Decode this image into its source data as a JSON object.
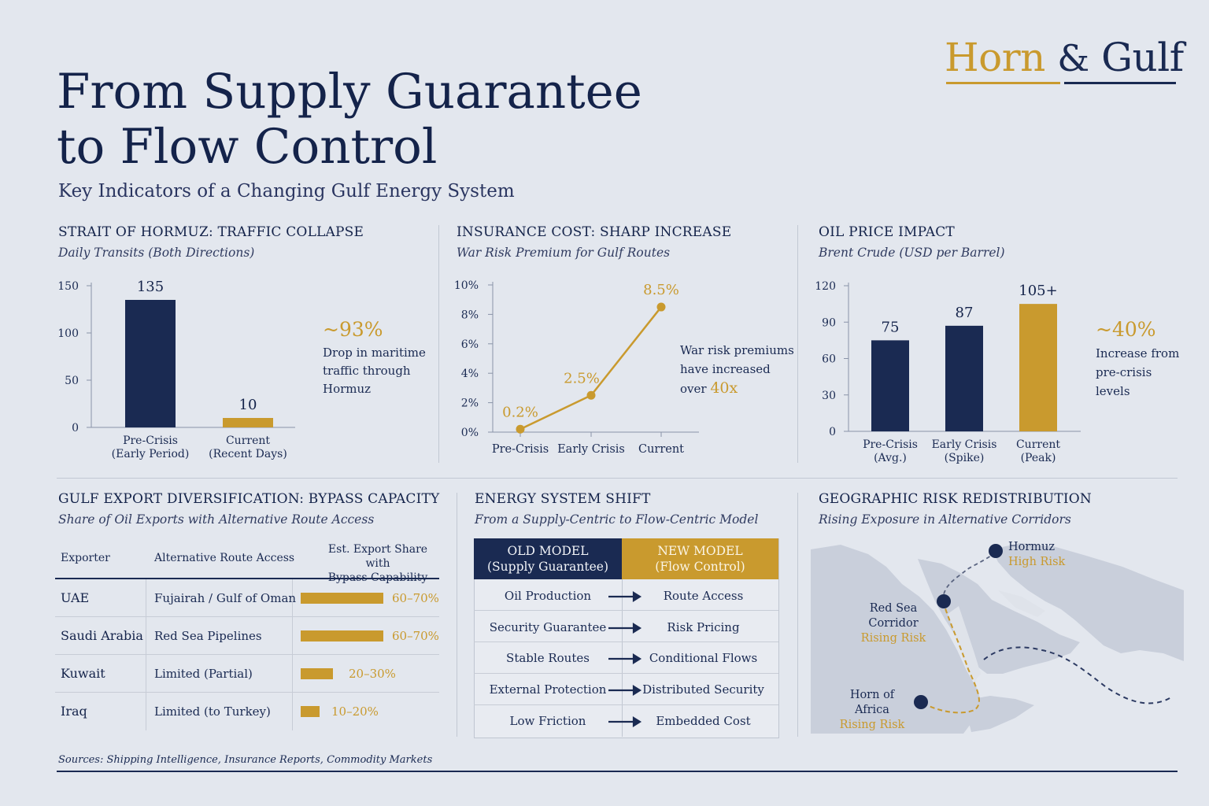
{
  "brand": {
    "horn": "Horn",
    "amp": "&",
    "gulf": "Gulf"
  },
  "header": {
    "title_line1": "From Supply Guarantee",
    "title_line2": "to Flow Control",
    "subtitle": "Key Indicators of a Changing Gulf Energy System"
  },
  "hormuz": {
    "title": "STRAIT OF HORMUZ: TRAFFIC COLLAPSE",
    "subtitle": "Daily Transits (Both Directions)",
    "callout_value": "~93%",
    "callout_lines": [
      "Drop in maritime",
      "traffic through",
      "Hormuz"
    ]
  },
  "insurance": {
    "title": "INSURANCE COST: SHARP INCREASE",
    "subtitle": "War Risk Premium for Gulf Routes",
    "callout_lines": [
      "War risk premiums",
      "have increased"
    ],
    "callout_prefix": "over",
    "callout_value": "40x"
  },
  "oil": {
    "title": "OIL PRICE IMPACT",
    "subtitle": "Brent Crude (USD per Barrel)",
    "callout_value": "~40%",
    "callout_lines": [
      "Increase from",
      "pre-crisis",
      "levels"
    ]
  },
  "chart_data": [
    {
      "type": "bar",
      "title": "STRAIT OF HORMUZ: TRAFFIC COLLAPSE",
      "subtitle": "Daily Transits (Both Directions)",
      "categories": [
        [
          "Pre-Crisis",
          "(Early Period)"
        ],
        [
          "Current",
          "(Recent Days)"
        ]
      ],
      "values": [
        135,
        10
      ],
      "labels": [
        "135",
        "10"
      ],
      "ylim": [
        0,
        150
      ],
      "yticks": [
        0,
        50,
        100,
        150
      ],
      "colors": [
        "#1a2a52",
        "#c99a2e"
      ]
    },
    {
      "type": "line",
      "title": "INSURANCE COST: SHARP INCREASE",
      "subtitle": "War Risk Premium for Gulf Routes",
      "categories": [
        "Pre-Crisis",
        "Early Crisis",
        "Current"
      ],
      "values": [
        0.2,
        2.5,
        8.5
      ],
      "labels": [
        "0.2%",
        "2.5%",
        "8.5%"
      ],
      "ylim": [
        0,
        10
      ],
      "yticks": [
        "0%",
        "2%",
        "4%",
        "6%",
        "8%",
        "10%"
      ],
      "color": "#c99a2e"
    },
    {
      "type": "bar",
      "title": "OIL PRICE IMPACT",
      "subtitle": "Brent Crude (USD per Barrel)",
      "categories": [
        [
          "Pre-Crisis",
          "(Avg.)"
        ],
        [
          "Early Crisis",
          "(Spike)"
        ],
        [
          "Current",
          "(Peak)"
        ]
      ],
      "values": [
        75,
        87,
        105
      ],
      "labels": [
        "75",
        "87",
        "105+"
      ],
      "ylim": [
        0,
        120
      ],
      "yticks": [
        0,
        30,
        60,
        90,
        120
      ],
      "colors": [
        "#1a2a52",
        "#1a2a52",
        "#c99a2e"
      ]
    }
  ],
  "diversification": {
    "title": "GULF EXPORT DIVERSIFICATION: BYPASS CAPACITY",
    "subtitle": "Share of Oil Exports with Alternative Route Access",
    "col_exporter": "Exporter",
    "col_route": "Alternative Route Access",
    "col_share_line1": "Est. Export Share with",
    "col_share_line2": "Bypass Capability",
    "rows": [
      {
        "exporter": "UAE",
        "route": "Fujairah / Gulf of Oman",
        "share": "60–70%",
        "bar": 0.65
      },
      {
        "exporter": "Saudi Arabia",
        "route": "Red Sea Pipelines",
        "share": "60–70%",
        "bar": 0.65
      },
      {
        "exporter": "Kuwait",
        "route": "Limited (Partial)",
        "share": "20–30%",
        "bar": 0.25
      },
      {
        "exporter": "Iraq",
        "route": "Limited (to Turkey)",
        "share": "10–20%",
        "bar": 0.15
      }
    ]
  },
  "shift": {
    "title": "ENERGY SYSTEM SHIFT",
    "subtitle": "From a Supply-Centric to Flow-Centric Model",
    "old_head_1": "OLD MODEL",
    "old_head_2": "(Supply Guarantee)",
    "new_head_1": "NEW MODEL",
    "new_head_2": "(Flow Control)",
    "rows": [
      {
        "old": "Oil Production",
        "new": "Route Access"
      },
      {
        "old": "Security Guarantee",
        "new": "Risk Pricing"
      },
      {
        "old": "Stable Routes",
        "new": "Conditional Flows"
      },
      {
        "old": "External Protection",
        "new": "Distributed Security"
      },
      {
        "old": "Low Friction",
        "new": "Embedded Cost"
      }
    ]
  },
  "geo": {
    "title": "GEOGRAPHIC RISK REDISTRIBUTION",
    "subtitle": "Rising Exposure in Alternative Corridors",
    "points": [
      {
        "name": "Hormuz",
        "risk": "High Risk"
      },
      {
        "name": "Red Sea Corridor",
        "risk": "Rising Risk"
      },
      {
        "name": "Horn of Africa",
        "risk": "Rising Risk"
      }
    ]
  },
  "footer": {
    "sources": "Sources: Shipping Intelligence, Insurance Reports, Commodity Markets"
  },
  "colors": {
    "navy": "#1a2a52",
    "gold": "#c99a2e",
    "background": "#e3e7ee"
  }
}
